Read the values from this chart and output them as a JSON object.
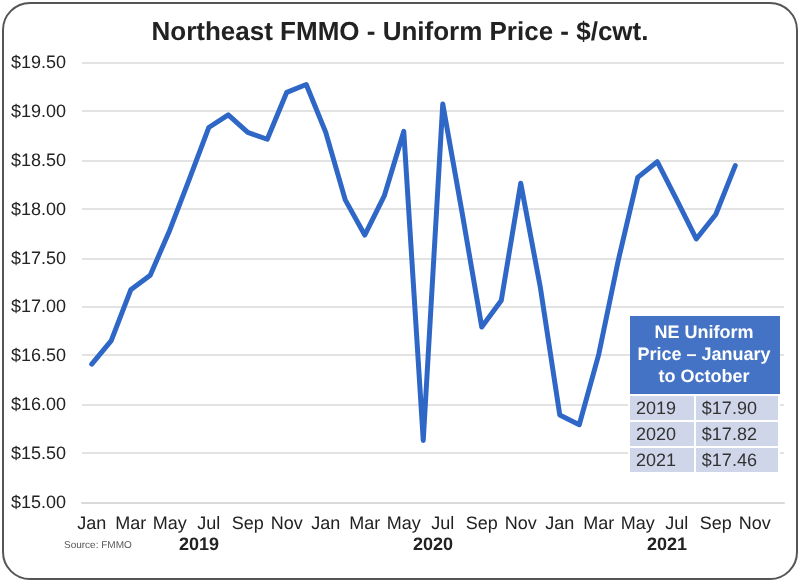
{
  "chart_data": {
    "type": "line",
    "title": "Northeast FMMO - Uniform Price - $/cwt.",
    "categories": [
      "Jan",
      null,
      "Mar",
      null,
      "May",
      null,
      "Jul",
      null,
      "Sep",
      null,
      "Nov",
      null,
      "Jan",
      null,
      "Mar",
      null,
      "May",
      null,
      "Jul",
      null,
      "Sep",
      null,
      "Nov",
      null,
      "Jan",
      null,
      "Mar",
      null,
      "May",
      null,
      "Jul",
      null,
      "Sep",
      null,
      "Nov",
      null
    ],
    "series": [
      {
        "color": "#2e67c6",
        "values": [
          16.41,
          16.65,
          17.17,
          17.32,
          17.78,
          18.3,
          18.83,
          18.96,
          18.78,
          18.71,
          19.19,
          19.27,
          18.78,
          18.09,
          17.73,
          18.13,
          18.79,
          15.63,
          19.07,
          17.95,
          16.79,
          17.06,
          18.26,
          17.2,
          15.89,
          15.79,
          16.51,
          17.47,
          18.32,
          18.48,
          18.09,
          17.69,
          17.94,
          18.44,
          null,
          null
        ]
      }
    ],
    "ylim": [
      15,
      19.5
    ],
    "yticks": [
      {
        "value": 15,
        "label": "$15.00"
      },
      {
        "value": 15.5,
        "label": "$15.50"
      },
      {
        "value": 16,
        "label": "$16.00"
      },
      {
        "value": 16.5,
        "label": "$16.50"
      },
      {
        "value": 17,
        "label": "$17.00"
      },
      {
        "value": 17.5,
        "label": "$17.50"
      },
      {
        "value": 18,
        "label": "$18.00"
      },
      {
        "value": 18.5,
        "label": "$18.50"
      },
      {
        "value": 19,
        "label": "$19.00"
      },
      {
        "value": 19.5,
        "label": "$19.50"
      }
    ],
    "grid": "y",
    "marker": "none",
    "line_style": "solid",
    "annotations": [
      "2019",
      "2020",
      "2021",
      "Source: FMMO",
      "NE Uniform Price – January to October",
      "2019",
      "$17.90",
      "2020",
      "$17.82",
      "2021",
      "$17.46"
    ]
  }
}
